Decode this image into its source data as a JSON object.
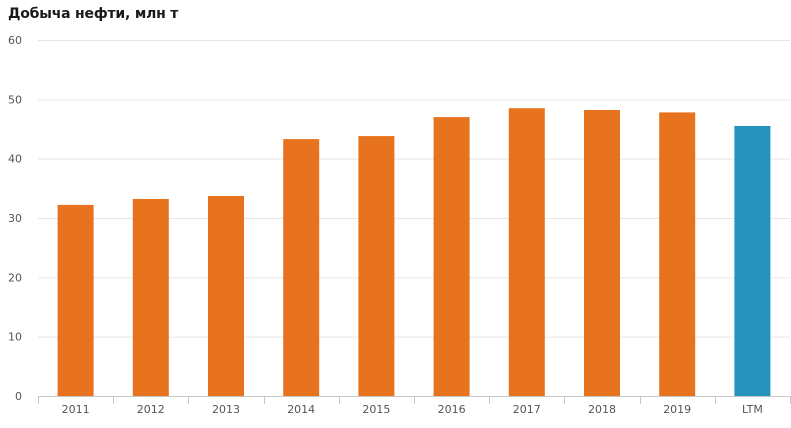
{
  "chart_data": {
    "type": "bar",
    "title": "Добыча нефти, млн т",
    "xlabel": "",
    "ylabel": "",
    "ylim": [
      0,
      60
    ],
    "yticks": [
      "0",
      "10",
      "20",
      "30",
      "40",
      "50",
      "60"
    ],
    "categories": [
      "2011",
      "2012",
      "2013",
      "2014",
      "2015",
      "2016",
      "2017",
      "2018",
      "2019",
      "LTM"
    ],
    "values": [
      32.2,
      33.2,
      33.7,
      43.3,
      43.8,
      47.0,
      48.5,
      48.2,
      47.8,
      45.5
    ],
    "grid": true,
    "legend": "none",
    "colors": {
      "bar": "#e8731f",
      "highlight": "#2592bb",
      "grid": "#e6e6e6",
      "axis": "#c8c8c8"
    },
    "highlight_categories": [
      "LTM"
    ]
  }
}
